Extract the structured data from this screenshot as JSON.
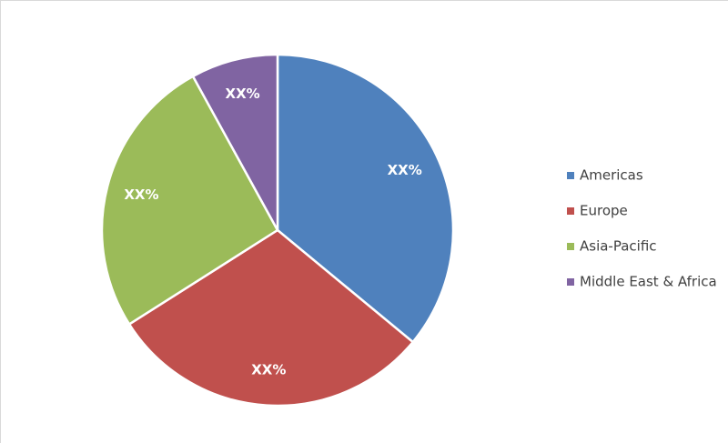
{
  "chart_data": {
    "type": "pie",
    "categories": [
      "Americas",
      "Europe",
      "Asia-Pacific",
      "Middle East & Africa"
    ],
    "values": [
      36,
      30,
      26,
      8
    ],
    "value_labels": [
      "XX%",
      "XX%",
      "XX%",
      "XX%"
    ],
    "colors": [
      "#4f81bd",
      "#c0504d",
      "#9bbb59",
      "#8064a2"
    ],
    "legend": "right"
  }
}
